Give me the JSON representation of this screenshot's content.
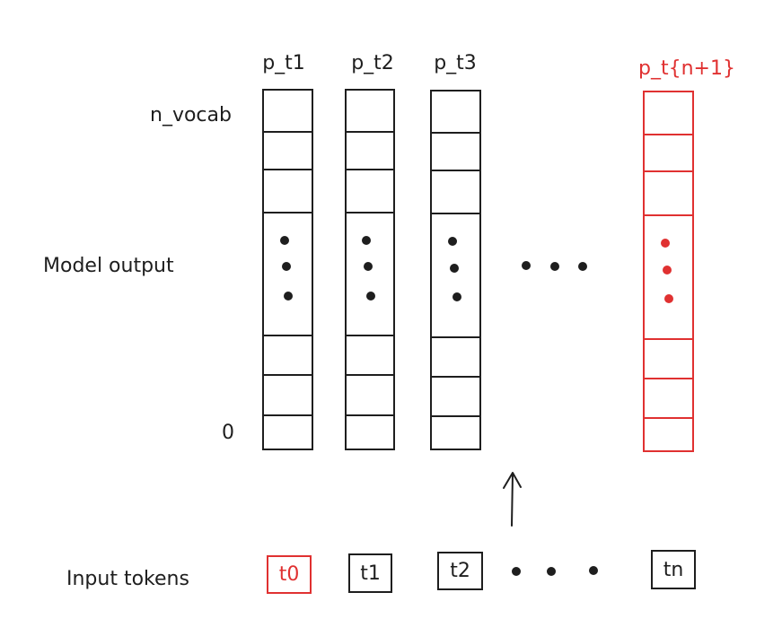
{
  "labels": {
    "n_vocab": "n_vocab",
    "zero": "0",
    "model_output": "Model output",
    "input_tokens": "Input tokens"
  },
  "columns": [
    {
      "title": "p_t1",
      "highlight": false
    },
    {
      "title": "p_t2",
      "highlight": false
    },
    {
      "title": "p_t3",
      "highlight": false
    },
    {
      "title": "p_t{n+1}",
      "highlight": true
    }
  ],
  "tokens": [
    {
      "label": "t0",
      "highlight": true
    },
    {
      "label": "t1",
      "highlight": false
    },
    {
      "label": "t2",
      "highlight": false
    },
    {
      "label": "tn",
      "highlight": false
    }
  ],
  "colors": {
    "ink": "#1e1e1e",
    "highlight": "#e03131"
  }
}
